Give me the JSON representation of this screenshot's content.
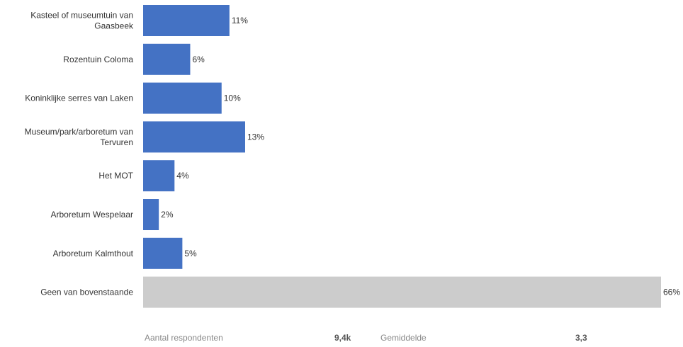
{
  "chart_data": {
    "type": "bar",
    "orientation": "horizontal",
    "categories": [
      "Kasteel of museumtuin van Gaasbeek",
      "Rozentuin Coloma",
      "Koninklijke serres van Laken",
      "Museum/park/arboretum van Tervuren",
      "Het MOT",
      "Arboretum Wespelaar",
      "Arboretum Kalmthout",
      "Geen van bovenstaande"
    ],
    "category_lines": [
      [
        "Kasteel of museumtuin van",
        "Gaasbeek"
      ],
      [
        "Rozentuin Coloma"
      ],
      [
        "Koninklijke serres van Laken"
      ],
      [
        "Museum/park/arboretum van",
        "Tervuren"
      ],
      [
        "Het MOT"
      ],
      [
        "Arboretum Wespelaar"
      ],
      [
        "Arboretum Kalmthout"
      ],
      [
        "Geen van bovenstaande"
      ]
    ],
    "values": [
      11,
      6,
      10,
      13,
      4,
      2,
      5,
      66
    ],
    "value_labels": [
      "11%",
      "6%",
      "10%",
      "13%",
      "4%",
      "2%",
      "5%",
      "66%"
    ],
    "bar_colors": [
      "#4472c4",
      "#4472c4",
      "#4472c4",
      "#4472c4",
      "#4472c4",
      "#4472c4",
      "#4472c4",
      "#cccccc"
    ],
    "xlim": [
      0,
      66
    ],
    "grid": false,
    "legend": "none"
  },
  "footer": {
    "respondents_label": "Aantal respondenten",
    "respondents_value": "9,4k",
    "average_label": "Gemiddelde",
    "average_value": "3,3"
  }
}
